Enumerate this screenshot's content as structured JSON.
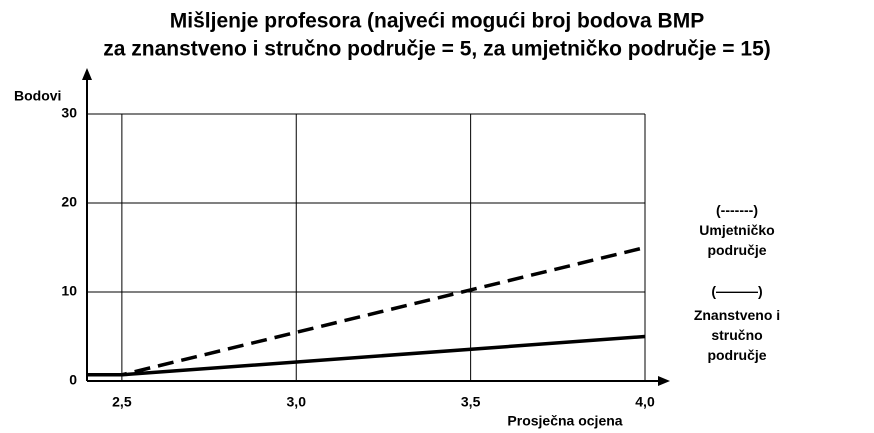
{
  "chart_data": {
    "type": "line",
    "title": [
      "Mišljenje profesora (najveći mogući broj bodova BMP",
      "za znanstveno i stručno područje = 5, za umjetničko područje = 15)"
    ],
    "y_label": "Bodovi",
    "x_label": "Prosječna ocjena",
    "x": [
      2.4,
      2.5,
      4.0
    ],
    "series": [
      {
        "name": "Umjetničko područje",
        "legend_symbol": "(-------)",
        "color": "#000000",
        "dashed": true,
        "values": [
          0.7,
          0.7,
          15
        ]
      },
      {
        "name": "Znanstveno i stručno područje",
        "legend_symbol": "(———)",
        "color": "#000000",
        "dashed": false,
        "values": [
          0.7,
          0.7,
          5
        ]
      }
    ],
    "xlim": [
      2.4,
      4.0
    ],
    "xticks": [
      {
        "value": 2.5,
        "label": "2,5"
      },
      {
        "value": 3.0,
        "label": "3,0"
      },
      {
        "value": 3.5,
        "label": "3,5"
      },
      {
        "value": 4.0,
        "label": "4,0"
      }
    ],
    "ylim": [
      0,
      30
    ],
    "yticks": [
      0,
      10,
      20,
      30
    ],
    "grid": true
  }
}
